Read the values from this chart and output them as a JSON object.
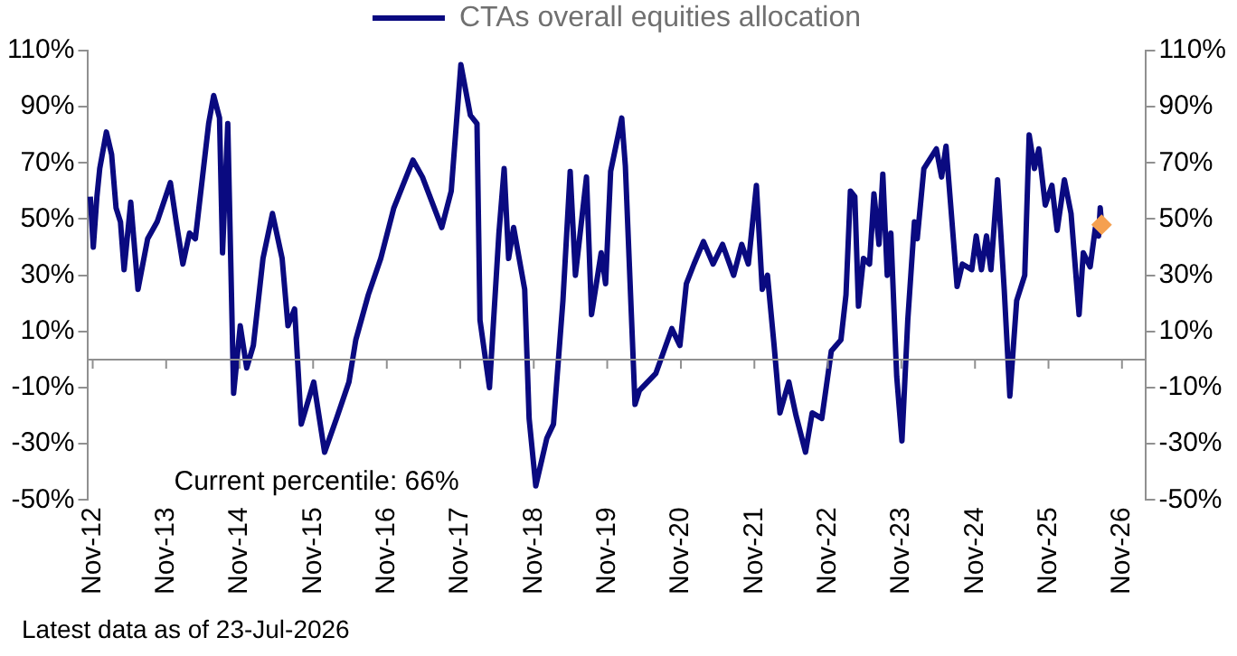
{
  "chart_data": {
    "type": "line",
    "legend": "top",
    "marker": "none",
    "line_style": "solid",
    "grid": false,
    "xlim": [
      "2012-10-05",
      "2027-03-01"
    ],
    "xticks": [
      {
        "value": "2012-11",
        "label": "Nov-12"
      },
      {
        "value": "2013-11",
        "label": "Nov-13"
      },
      {
        "value": "2014-11",
        "label": "Nov-14"
      },
      {
        "value": "2015-11",
        "label": "Nov-15"
      },
      {
        "value": "2016-11",
        "label": "Nov-16"
      },
      {
        "value": "2017-11",
        "label": "Nov-17"
      },
      {
        "value": "2018-11",
        "label": "Nov-18"
      },
      {
        "value": "2019-11",
        "label": "Nov-19"
      },
      {
        "value": "2020-11",
        "label": "Nov-20"
      },
      {
        "value": "2021-11",
        "label": "Nov-21"
      },
      {
        "value": "2022-11",
        "label": "Nov-22"
      },
      {
        "value": "2023-11",
        "label": "Nov-23"
      },
      {
        "value": "2024-11",
        "label": "Nov-24"
      },
      {
        "value": "2025-11",
        "label": "Nov-25"
      },
      {
        "value": "2026-11",
        "label": "Nov-26"
      }
    ],
    "ylim": [
      -50,
      110
    ],
    "yticks": [
      {
        "value": -50,
        "label": "-50%"
      },
      {
        "value": -30,
        "label": "-30%"
      },
      {
        "value": -10,
        "label": "-10%"
      },
      {
        "value": 10,
        "label": "10%"
      },
      {
        "value": 30,
        "label": "30%"
      },
      {
        "value": 50,
        "label": "50%"
      },
      {
        "value": 70,
        "label": "70%"
      },
      {
        "value": 90,
        "label": "90%"
      },
      {
        "value": 110,
        "label": "110%"
      }
    ],
    "y2lim": [
      -50,
      110
    ],
    "y2ticks": [
      {
        "value": -50,
        "label": "-50%"
      },
      {
        "value": -30,
        "label": "-30%"
      },
      {
        "value": -10,
        "label": "-10%"
      },
      {
        "value": 10,
        "label": "10%"
      },
      {
        "value": 30,
        "label": "30%"
      },
      {
        "value": 50,
        "label": "50%"
      },
      {
        "value": 70,
        "label": "70%"
      },
      {
        "value": 90,
        "label": "90%"
      },
      {
        "value": 110,
        "label": "110%"
      }
    ],
    "ref_lines": [
      {
        "axis": "y",
        "value": 0,
        "color": "#909090"
      }
    ],
    "series": [
      {
        "name": "CTAs overall equities allocation",
        "color": "#0a0a80",
        "x": [
          "2012-10-20",
          "2012-11-04",
          "2012-11-22",
          "2012-12-06",
          "2013-01-08",
          "2013-02-03",
          "2013-02-25",
          "2013-03-19",
          "2013-04-06",
          "2013-05-09",
          "2013-06-14",
          "2013-08-01",
          "2013-09-17",
          "2013-11-22",
          "2013-12-21",
          "2014-01-23",
          "2014-02-25",
          "2014-03-26",
          "2014-05-31",
          "2014-06-25",
          "2014-07-24",
          "2014-08-08",
          "2014-09-03",
          "2014-10-02",
          "2014-11-04",
          "2014-12-06",
          "2015-01-08",
          "2015-02-25",
          "2015-04-13",
          "2015-05-31",
          "2015-06-29",
          "2015-08-01",
          "2015-09-03",
          "2015-11-04",
          "2015-12-28",
          "2016-02-25",
          "2016-04-27",
          "2016-05-31",
          "2016-08-01",
          "2016-10-02",
          "2016-12-06",
          "2017-03-11",
          "2017-04-27",
          "2017-08-01",
          "2017-09-17",
          "2017-11-04",
          "2017-12-21",
          "2018-01-23",
          "2018-02-07",
          "2018-03-26",
          "2018-05-12",
          "2018-06-07",
          "2018-06-29",
          "2018-07-24",
          "2018-09-17",
          "2018-10-09",
          "2018-11-11",
          "2019-01-05",
          "2019-02-07",
          "2019-03-26",
          "2019-05-01",
          "2019-05-27",
          "2019-07-21",
          "2019-08-15",
          "2019-10-02",
          "2019-10-24",
          "2019-11-18",
          "2020-01-12",
          "2020-01-30",
          "2020-03-18",
          "2020-04-09",
          "2020-06-29",
          "2020-09-17",
          "2020-10-27",
          "2020-11-28",
          "2021-01-05",
          "2021-02-21",
          "2021-04-10",
          "2021-05-27",
          "2021-07-21",
          "2021-08-30",
          "2021-10-02",
          "2021-11-11",
          "2021-12-10",
          "2022-01-05",
          "2022-02-07",
          "2022-03-08",
          "2022-04-21",
          "2022-05-27",
          "2022-07-13",
          "2022-08-15",
          "2022-10-02",
          "2022-11-18",
          "2023-01-05",
          "2023-01-30",
          "2023-02-21",
          "2023-03-15",
          "2023-04-02",
          "2023-04-27",
          "2023-05-27",
          "2023-06-18",
          "2023-07-13",
          "2023-08-01",
          "2023-08-23",
          "2023-09-10",
          "2023-10-09",
          "2023-11-04",
          "2023-12-03",
          "2024-01-05",
          "2024-01-19",
          "2024-02-21",
          "2024-04-23",
          "2024-05-19",
          "2024-06-10",
          "2024-07-02",
          "2024-08-04",
          "2024-08-30",
          "2024-10-16",
          "2024-11-07",
          "2024-12-03",
          "2024-12-28",
          "2025-01-19",
          "2025-02-21",
          "2025-03-26",
          "2025-04-23",
          "2025-05-27",
          "2025-07-06",
          "2025-07-28",
          "2025-08-23",
          "2025-09-14",
          "2025-10-16",
          "2025-11-18",
          "2025-12-14",
          "2026-01-19",
          "2026-02-21",
          "2026-04-02",
          "2026-04-23",
          "2026-05-27",
          "2026-06-22",
          "2026-07-08",
          "2026-07-16",
          "2026-07-23"
        ],
        "values": [
          58,
          40,
          58,
          68,
          81,
          73,
          54,
          49,
          32,
          56,
          25,
          43,
          49,
          63,
          49,
          34,
          45,
          43,
          84,
          94,
          86,
          38,
          84,
          -12,
          12,
          -3,
          5,
          36,
          52,
          36,
          12,
          18,
          -23,
          -8,
          -33,
          -21,
          -8,
          7,
          23,
          36,
          54,
          71,
          65,
          47,
          60,
          105,
          87,
          84,
          14,
          -10,
          45,
          68,
          36,
          47,
          25,
          -21,
          -45,
          -28,
          -23,
          21,
          67,
          30,
          65,
          16,
          38,
          27,
          67,
          86,
          69,
          -16,
          -11,
          -5,
          11,
          5,
          27,
          34,
          42,
          34,
          41,
          30,
          41,
          34,
          62,
          25,
          30,
          5,
          -19,
          -8,
          -20,
          -33,
          -19,
          -21,
          3,
          7,
          23,
          60,
          58,
          19,
          36,
          34,
          59,
          41,
          66,
          30,
          45,
          -6,
          -29,
          14,
          49,
          43,
          68,
          75,
          65,
          76,
          56,
          26,
          34,
          32,
          44,
          32,
          44,
          32,
          64,
          25,
          -13,
          21,
          30,
          80,
          68,
          75,
          55,
          62,
          46,
          64,
          52,
          16,
          38,
          33,
          47,
          44,
          54,
          48
        ]
      },
      {
        "type": "scatter",
        "marker": "diamond",
        "color": "#f5a050",
        "x": [
          "2026-07-23"
        ],
        "values": [
          48
        ]
      }
    ],
    "annotations": [
      "Current percentile: 66%",
      "Latest data as of 23-Jul-2026"
    ]
  }
}
